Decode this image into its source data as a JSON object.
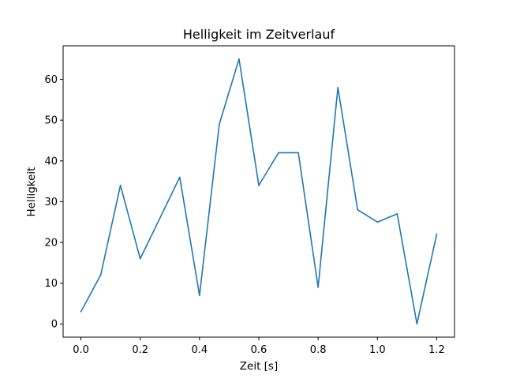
{
  "chart_data": {
    "type": "line",
    "title": "Helligkeit im Zeitverlauf",
    "xlabel": "Zeit [s]",
    "ylabel": "Helligkeit",
    "xlim": [
      -0.06,
      1.26
    ],
    "ylim": [
      -3.25,
      68.25
    ],
    "xticks": [
      0.0,
      0.2,
      0.4,
      0.6,
      0.8,
      1.0,
      1.2
    ],
    "xtick_labels": [
      "0.0",
      "0.2",
      "0.4",
      "0.6",
      "0.8",
      "1.0",
      "1.2"
    ],
    "yticks": [
      0,
      10,
      20,
      30,
      40,
      50,
      60
    ],
    "ytick_labels": [
      "0",
      "10",
      "20",
      "30",
      "40",
      "50",
      "60"
    ],
    "grid": false,
    "legend": "none",
    "series": [
      {
        "color": "#1f77b4",
        "x": [
          0.0,
          0.0667,
          0.1333,
          0.2,
          0.2667,
          0.3333,
          0.4,
          0.4667,
          0.5333,
          0.6,
          0.6667,
          0.7333,
          0.8,
          0.8667,
          0.9333,
          1.0,
          1.0667,
          1.1333,
          1.2
        ],
        "y": [
          3,
          12,
          34,
          16,
          26,
          36,
          7,
          49,
          65,
          34,
          42,
          42,
          9,
          58,
          28,
          25,
          27,
          0,
          22
        ]
      }
    ]
  }
}
